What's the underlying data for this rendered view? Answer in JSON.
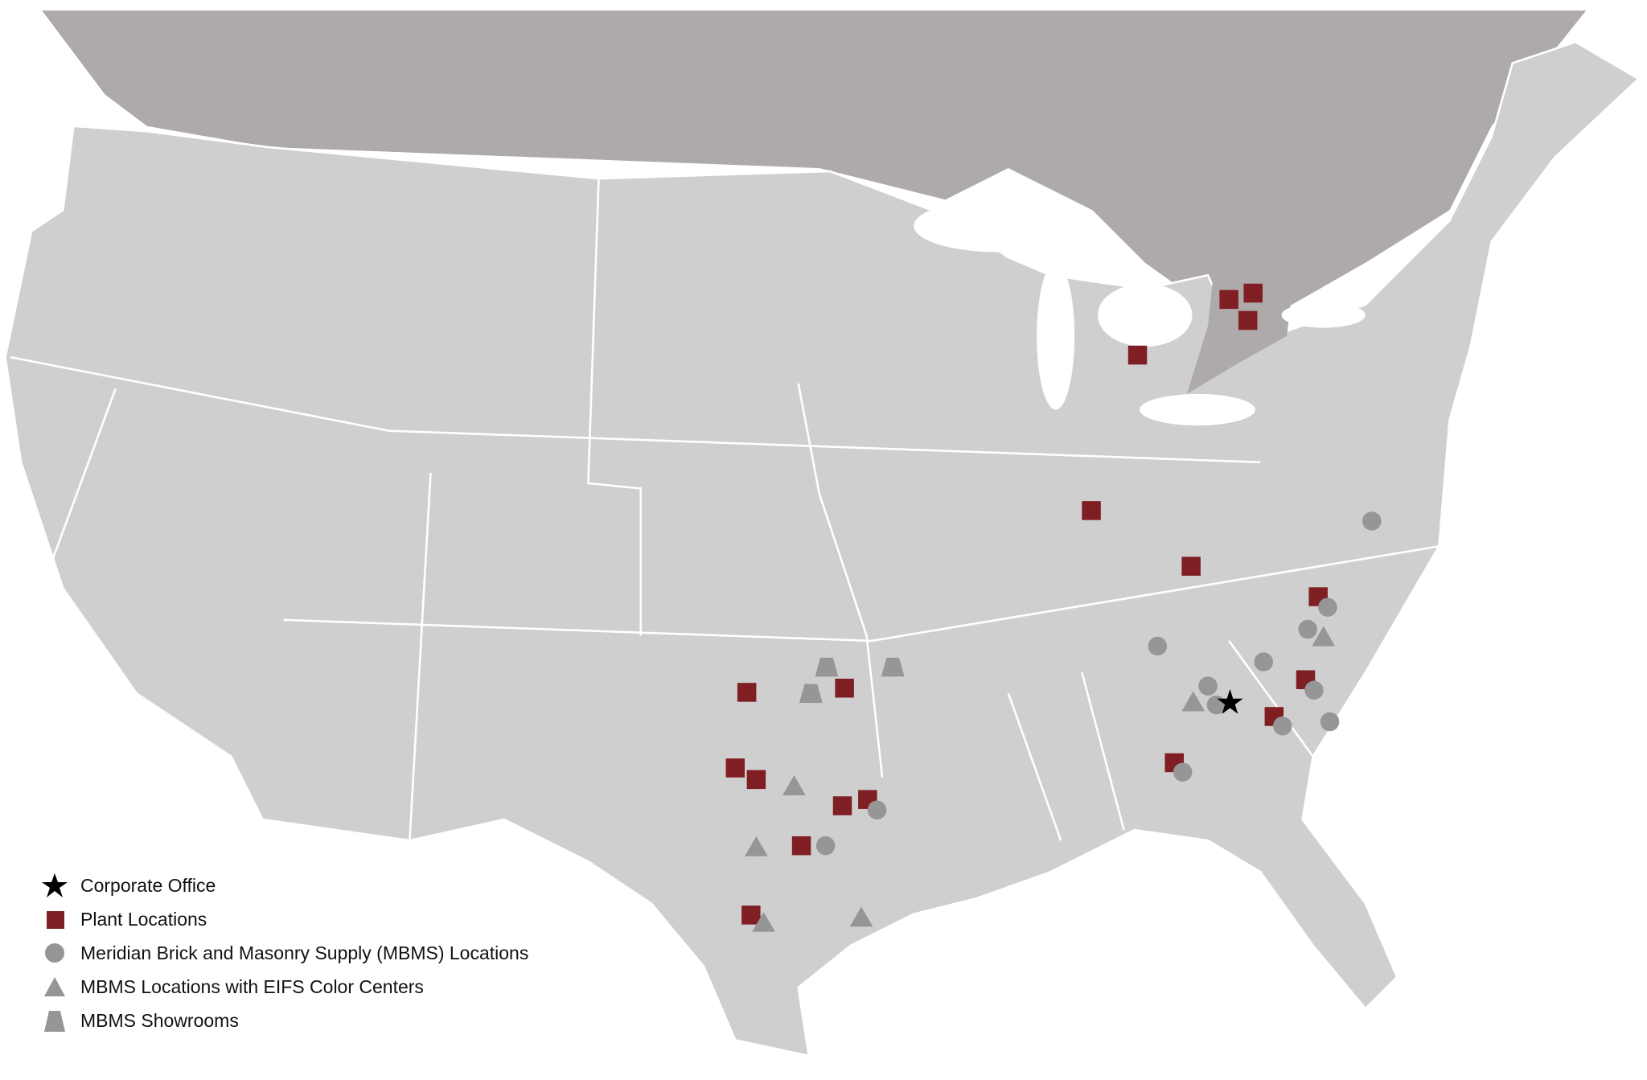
{
  "legend": {
    "items": [
      {
        "label": "Corporate Office",
        "icon": "star-icon",
        "color": "#000000"
      },
      {
        "label": "Plant Locations",
        "icon": "square-icon",
        "color": "#7f1f24"
      },
      {
        "label": "Meridian Brick and Masonry Supply (MBMS) Locations",
        "icon": "circle-icon",
        "color": "#969696"
      },
      {
        "label": "MBMS Locations with EIFS Color Centers",
        "icon": "triangle-icon",
        "color": "#969696"
      },
      {
        "label": "MBMS Showrooms",
        "icon": "trapezoid-icon",
        "color": "#969696"
      }
    ]
  },
  "colors": {
    "us_land": "#d0cfd0",
    "canada_land": "#aeaaa9",
    "water": "#ffffff",
    "borders": "#ffffff"
  }
}
